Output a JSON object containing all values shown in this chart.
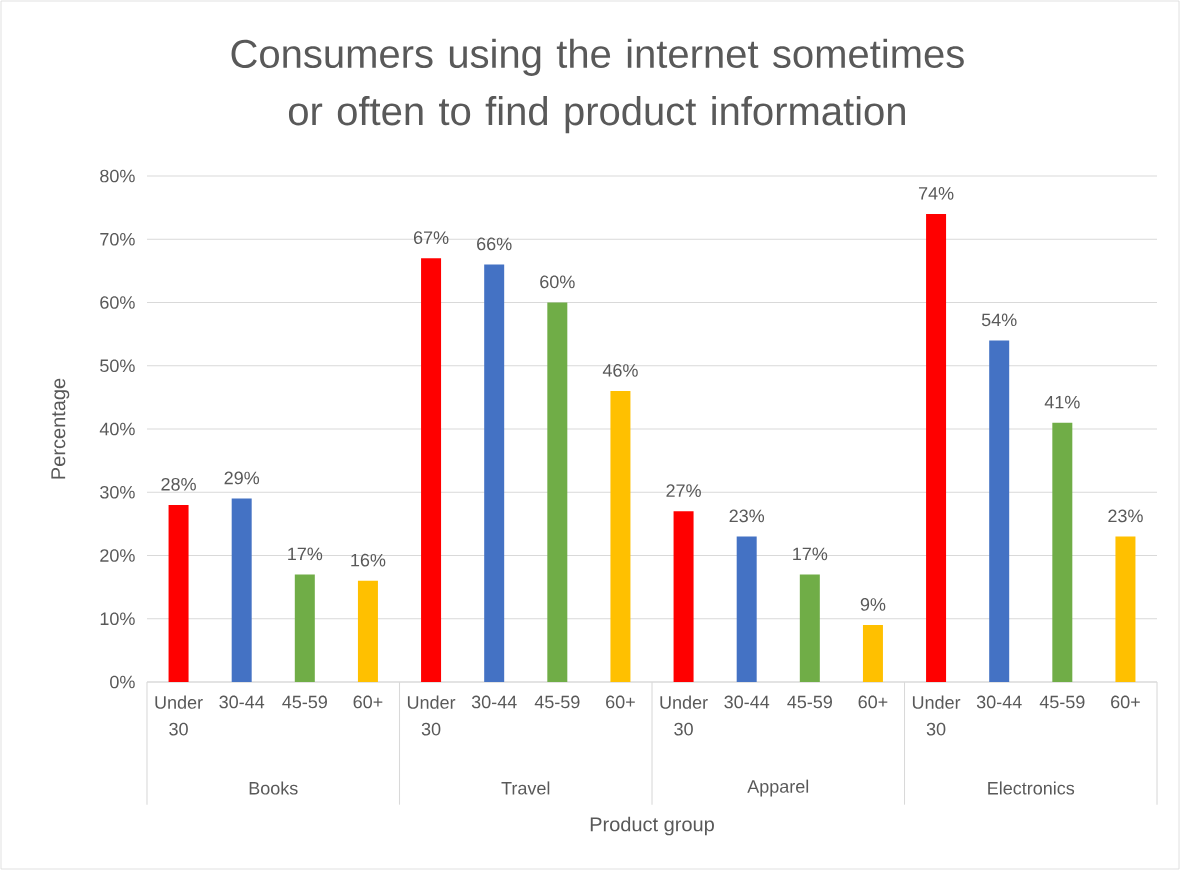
{
  "chart_data": {
    "type": "bar",
    "title": "Consumers using the internet sometimes or often to find product information",
    "xlabel": "Product group",
    "ylabel": "Percentage",
    "categories": [
      "Books",
      "Travel",
      "Apparel",
      "Electronics"
    ],
    "series": [
      {
        "name": "Under 30",
        "color": "#ff0000",
        "values": [
          28,
          67,
          27,
          74
        ],
        "value_labels": [
          "28%",
          "67%",
          "27%",
          "74%"
        ]
      },
      {
        "name": "30-44",
        "color": "#4472c4",
        "values": [
          29,
          66,
          23,
          54
        ],
        "value_labels": [
          "29%",
          "66%",
          "23%",
          "54%"
        ]
      },
      {
        "name": "45-59",
        "color": "#70ad47",
        "values": [
          17,
          60,
          17,
          41
        ],
        "value_labels": [
          "17%",
          "60%",
          "17%",
          "41%"
        ]
      },
      {
        "name": "60+",
        "color": "#ffc000",
        "values": [
          16,
          46,
          9,
          23
        ],
        "value_labels": [
          "16%",
          "46%",
          "9%",
          "23%"
        ]
      }
    ],
    "ylim": [
      0,
      80
    ],
    "yticks": [
      {
        "value": 0,
        "label": "0%"
      },
      {
        "value": 10,
        "label": "10%"
      },
      {
        "value": 20,
        "label": "20%"
      },
      {
        "value": 30,
        "label": "30%"
      },
      {
        "value": 40,
        "label": "40%"
      },
      {
        "value": 50,
        "label": "50%"
      },
      {
        "value": 60,
        "label": "60%"
      },
      {
        "value": 70,
        "label": "70%"
      },
      {
        "value": 80,
        "label": "80%"
      }
    ],
    "grid": "y"
  }
}
